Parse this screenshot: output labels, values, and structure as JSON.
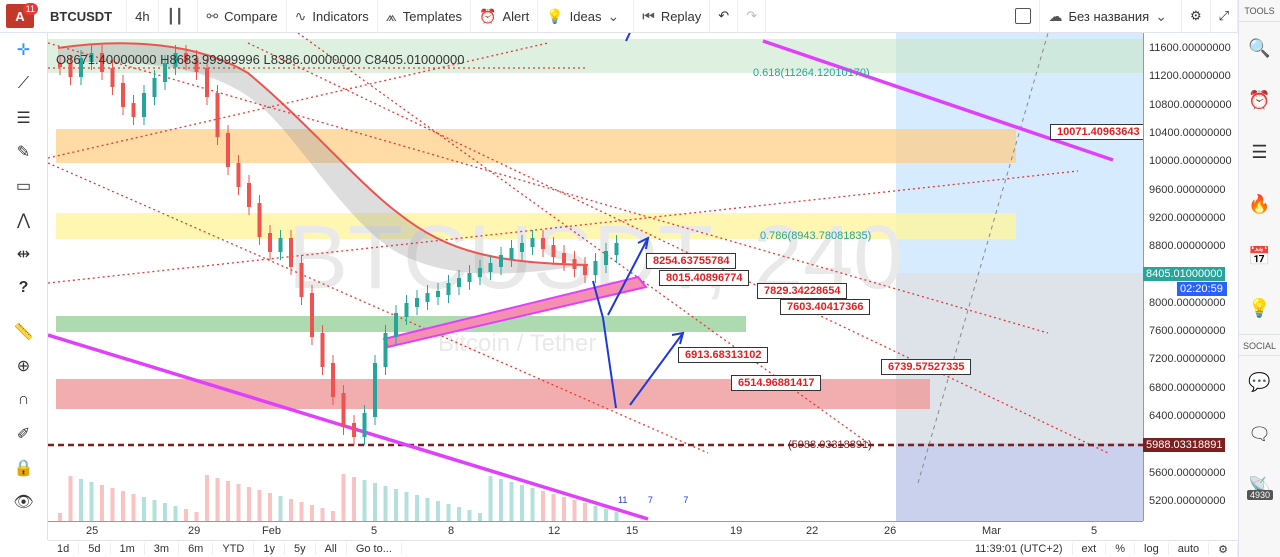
{
  "topbar": {
    "badge": "11",
    "symbol": "BTCUSDT",
    "interval": "4h",
    "compare": "Compare",
    "indicators": "Indicators",
    "templates": "Templates",
    "alert": "Alert",
    "ideas": "Ideas",
    "replay": "Replay",
    "layout_name": "Без названия"
  },
  "ohlc": "O8671.40000000  H8683.99999996  L8386.00000000  C8405.01000000",
  "price_axis": [
    "11600.00000000",
    "11200.00000000",
    "10800.00000000",
    "10400.00000000",
    "10000.00000000",
    "9600.00000000",
    "9200.00000000",
    "8800.00000000",
    "8400.00000000",
    "8000.00000000",
    "7600.00000000",
    "7200.00000000",
    "6800.00000000",
    "6400.00000000",
    "6000.00000000",
    "5600.00000000",
    "5200.00000000"
  ],
  "current_price": "8405.01000000",
  "countdown": "02:20:59",
  "support_price": "5988.03318891",
  "time_axis": [
    "25",
    "29",
    "Feb",
    "5",
    "8",
    "12",
    "15",
    "19",
    "22",
    "26",
    "Mar",
    "5"
  ],
  "labels": [
    "10071.40963643",
    "8254.63755784",
    "8015.40896774",
    "7829.34228654",
    "7603.40417366",
    "6913.68313102",
    "6514.96881417",
    "6739.57527335"
  ],
  "fib_labels": [
    "0.618(11264.12010170)",
    "0.786(8943.78081835)",
    "(5988.03318891)"
  ],
  "bottombar": {
    "ranges": [
      "1d",
      "5d",
      "1m",
      "3m",
      "6m",
      "YTD",
      "1y",
      "5y",
      "All"
    ],
    "goto": "Go to...",
    "clock": "11:39:01 (UTC+2)",
    "opts": [
      "ext",
      "%",
      "log",
      "auto"
    ]
  },
  "right_panel": {
    "tools": "TOOLS",
    "social": "SOCIAL",
    "count": "4930"
  },
  "event_badges": [
    "11",
    "7",
    "7"
  ],
  "colors": {
    "accent": "#2196f3",
    "brand": "#c0392b",
    "up": "#26a69a",
    "down": "#ef5350",
    "magenta": "#e040fb"
  }
}
